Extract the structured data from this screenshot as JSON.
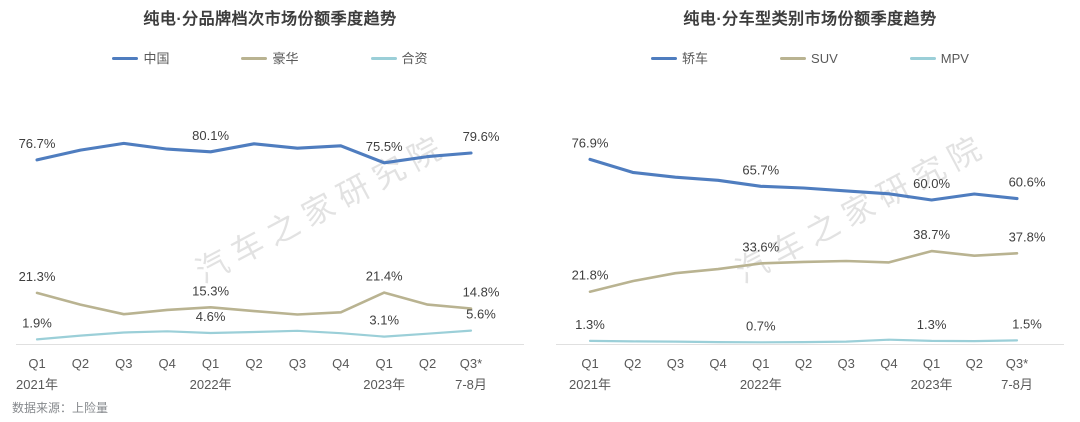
{
  "page": {
    "footer": {
      "text": "数据来源：上险量"
    },
    "watermark": "汽车之家研究院",
    "colors": {
      "series_blue": "#4f7dbf",
      "series_olive": "#b9b391",
      "series_cyan": "#9bcfd8",
      "axis_line": "#e0e0e0",
      "title_text": "#3c3c3c",
      "label_text": "#3f3f3f",
      "tick_text": "#595959"
    }
  },
  "chart_data": [
    {
      "type": "line",
      "title": "纯电·分品牌档次市场份额季度趋势",
      "legend_position": "top",
      "grid": false,
      "unit": "%",
      "ylim": [
        0,
        100
      ],
      "x_categories": [
        "Q1",
        "Q2",
        "Q3",
        "Q4",
        "Q1",
        "Q2",
        "Q3",
        "Q4",
        "Q1",
        "Q2",
        "Q3*"
      ],
      "x_year_labels": {
        "0": "2021年",
        "4": "2022年",
        "8": "2023年",
        "10": "7-8月"
      },
      "series": [
        {
          "name": "中国",
          "key": "china",
          "color": "#4f7dbf",
          "values": [
            76.7,
            80.8,
            83.6,
            81.2,
            80.1,
            83.4,
            81.6,
            82.6,
            75.5,
            78.1,
            79.6
          ],
          "labels": {
            "0": "76.7%",
            "4": "80.1%",
            "8": "75.5%",
            "10": "79.6%"
          }
        },
        {
          "name": "豪华",
          "key": "luxury",
          "color": "#b9b391",
          "values": [
            21.3,
            16.4,
            12.4,
            14.2,
            15.3,
            13.7,
            12.3,
            13.2,
            21.4,
            16.4,
            14.8
          ],
          "labels": {
            "0": "21.3%",
            "4": "15.3%",
            "8": "21.4%",
            "10": "14.8%"
          }
        },
        {
          "name": "合资",
          "key": "joint-venture",
          "color": "#9bcfd8",
          "values": [
            1.9,
            3.5,
            4.8,
            5.3,
            4.6,
            5.0,
            5.5,
            4.5,
            3.1,
            4.3,
            5.6
          ],
          "labels": {
            "0": "1.9%",
            "4": "4.6%",
            "8": "3.1%",
            "10": "5.6%"
          }
        }
      ]
    },
    {
      "type": "line",
      "title": "纯电·分车型类别市场份额季度趋势",
      "legend_position": "top",
      "grid": false,
      "unit": "%",
      "ylim": [
        0,
        100
      ],
      "x_categories": [
        "Q1",
        "Q2",
        "Q3",
        "Q4",
        "Q1",
        "Q2",
        "Q3",
        "Q4",
        "Q1",
        "Q2",
        "Q3*"
      ],
      "x_year_labels": {
        "0": "2021年",
        "4": "2022年",
        "8": "2023年",
        "10": "7-8月"
      },
      "series": [
        {
          "name": "轿车",
          "key": "sedan",
          "color": "#4f7dbf",
          "values": [
            76.9,
            71.5,
            69.5,
            68.2,
            65.7,
            65.0,
            63.8,
            62.6,
            60.0,
            62.5,
            60.6
          ],
          "labels": {
            "0": "76.9%",
            "4": "65.7%",
            "8": "60.0%",
            "10": "60.6%"
          }
        },
        {
          "name": "SUV",
          "key": "suv",
          "color": "#b9b391",
          "values": [
            21.8,
            26.2,
            29.5,
            31.2,
            33.6,
            34.2,
            34.6,
            34.0,
            38.7,
            36.8,
            37.8
          ],
          "labels": {
            "0": "21.8%",
            "4": "33.6%",
            "8": "38.7%",
            "10": "37.8%"
          }
        },
        {
          "name": "MPV",
          "key": "mpv",
          "color": "#9bcfd8",
          "values": [
            1.3,
            1.1,
            1.0,
            0.8,
            0.7,
            0.8,
            1.0,
            1.8,
            1.3,
            1.2,
            1.5
          ],
          "labels": {
            "0": "1.3%",
            "4": "0.7%",
            "8": "1.3%",
            "10": "1.5%"
          }
        }
      ]
    }
  ]
}
